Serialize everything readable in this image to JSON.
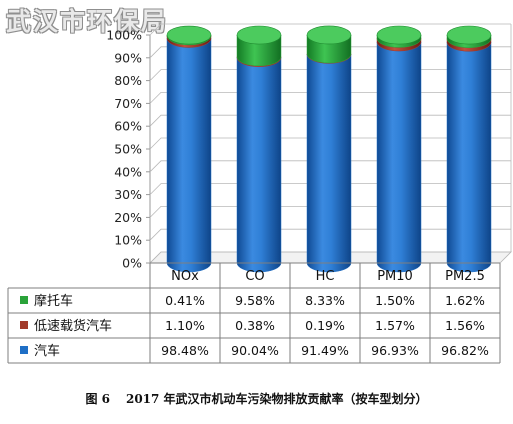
{
  "watermark": "武汉市环保局",
  "caption": {
    "figure_number": "图 6",
    "title": "2017 年武汉市机动车污染物排放贡献率（按车型划分）"
  },
  "colors": {
    "汽车": "#1f6fc6",
    "低速载货汽车": "#a23a2a",
    "摩托车": "#2aa33a"
  },
  "chart_data": {
    "type": "bar",
    "stacked": true,
    "percent": true,
    "categories": [
      "NOx",
      "CO",
      "HC",
      "PM10",
      "PM2.5"
    ],
    "series": [
      {
        "name": "摩托车",
        "values": [
          0.41,
          9.58,
          8.33,
          1.5,
          1.62
        ],
        "labels": [
          "0.41%",
          "9.58%",
          "8.33%",
          "1.50%",
          "1.62%"
        ]
      },
      {
        "name": "低速载货汽车",
        "values": [
          1.1,
          0.38,
          0.19,
          1.57,
          1.56
        ],
        "labels": [
          "1.10%",
          "0.38%",
          "0.19%",
          "1.57%",
          "1.56%"
        ]
      },
      {
        "name": "汽车",
        "values": [
          98.48,
          90.04,
          91.49,
          96.93,
          96.82
        ],
        "labels": [
          "98.48%",
          "90.04%",
          "91.49%",
          "96.93%",
          "96.82%"
        ]
      }
    ],
    "stack_order_bottom_to_top": [
      "汽车",
      "低速载货汽车",
      "摩托车"
    ],
    "ylim": [
      0,
      100
    ],
    "yticks": [
      "0%",
      "10%",
      "20%",
      "30%",
      "40%",
      "50%",
      "60%",
      "70%",
      "80%",
      "90%",
      "100%"
    ],
    "grid": true,
    "three_d": true,
    "legend": "data-table-left"
  }
}
